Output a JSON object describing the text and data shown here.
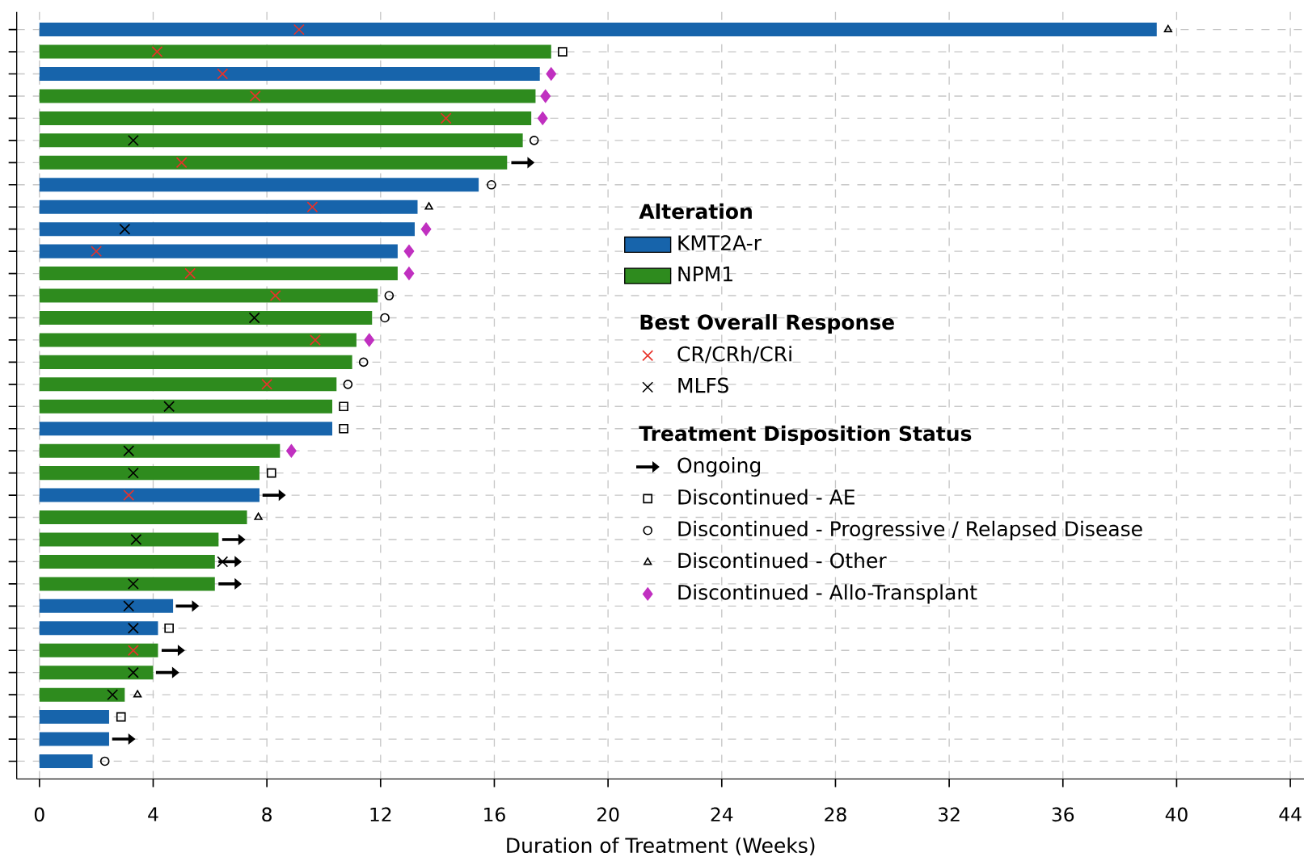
{
  "chart_data": {
    "type": "bar",
    "orientation": "horizontal",
    "xlabel": "Duration of Treatment (Weeks)",
    "legend_title": "Alteration",
    "annotations": [
      "Best Overall Response",
      "Treatment Disposition Status"
    ],
    "categories": [
      null,
      null,
      null,
      null,
      null,
      null,
      null,
      null,
      null,
      null,
      null,
      null,
      null,
      null,
      null,
      null,
      null,
      null,
      null,
      null,
      null,
      null,
      null,
      null,
      null,
      null,
      null,
      null,
      null,
      null,
      null,
      null,
      null,
      null
    ],
    "xlim": [
      -0.8,
      44.5
    ],
    "xticks": [
      0,
      4,
      8,
      12,
      16,
      20,
      24,
      28,
      32,
      36,
      40,
      44
    ],
    "grid": true,
    "legend": "right",
    "tick_labels": "x",
    "series": [
      {
        "name": "KMT2A-r",
        "color": "#1764ab",
        "values": [
          39.3,
          null,
          17.6,
          null,
          null,
          null,
          null,
          15.45,
          13.3,
          13.2,
          12.6,
          null,
          null,
          null,
          null,
          null,
          null,
          null,
          10.3,
          null,
          null,
          7.74,
          null,
          null,
          null,
          null,
          4.7,
          4.17,
          null,
          null,
          null,
          2.45,
          2.45,
          1.87
        ]
      },
      {
        "name": "NPM1",
        "color": "#2e8b1e",
        "values": [
          null,
          18.0,
          null,
          17.45,
          17.3,
          17.0,
          16.45,
          null,
          null,
          null,
          null,
          12.6,
          11.9,
          11.7,
          11.15,
          11.0,
          10.45,
          10.3,
          null,
          8.46,
          7.74,
          null,
          7.3,
          6.3,
          6.17,
          6.17,
          null,
          null,
          4.17,
          4.0,
          3.0,
          null,
          null,
          null
        ]
      },
      {
        "name": "CR/CRh/CRi",
        "type": "scatter",
        "marker": "cross",
        "color": "#e8332a",
        "values": [
          9.13,
          4.14,
          6.44,
          7.59,
          14.3,
          null,
          5.0,
          null,
          9.6,
          null,
          2.0,
          5.3,
          8.3,
          null,
          9.7,
          null,
          8.0,
          null,
          null,
          null,
          null,
          3.14,
          null,
          null,
          null,
          null,
          null,
          null,
          3.3,
          null,
          null,
          null,
          null,
          null
        ]
      },
      {
        "name": "MLFS",
        "type": "scatter",
        "marker": "cross",
        "color": "#000000",
        "values": [
          null,
          null,
          null,
          null,
          null,
          3.3,
          null,
          null,
          null,
          3.0,
          null,
          null,
          null,
          7.56,
          null,
          null,
          null,
          4.56,
          null,
          3.14,
          3.3,
          null,
          null,
          3.4,
          6.44,
          3.3,
          3.14,
          3.3,
          null,
          3.3,
          2.57,
          null,
          null,
          null
        ]
      },
      {
        "name": "Ongoing",
        "type": "scatter",
        "color": "#000000",
        "values": [
          null,
          null,
          null,
          null,
          null,
          null,
          17.0,
          null,
          null,
          null,
          null,
          null,
          null,
          null,
          null,
          null,
          null,
          null,
          null,
          null,
          null,
          8.25,
          null,
          6.83,
          6.7,
          6.7,
          5.2,
          null,
          4.7,
          4.5,
          null,
          null,
          2.96,
          null
        ]
      },
      {
        "name": "Discontinued - AE",
        "type": "scatter",
        "marker": "square",
        "color": "#000000",
        "values": [
          null,
          18.4,
          null,
          null,
          null,
          null,
          null,
          null,
          null,
          null,
          null,
          null,
          null,
          null,
          null,
          null,
          null,
          10.7,
          10.7,
          null,
          8.16,
          null,
          null,
          null,
          null,
          null,
          null,
          4.56,
          null,
          null,
          null,
          2.87,
          null,
          null
        ]
      },
      {
        "name": "Discontinued - Progressive / Relapsed Disease",
        "type": "scatter",
        "marker": "circle",
        "color": "#000000",
        "values": [
          null,
          null,
          null,
          null,
          null,
          17.4,
          null,
          15.9,
          null,
          null,
          null,
          null,
          12.3,
          12.15,
          null,
          11.4,
          10.85,
          null,
          null,
          null,
          null,
          null,
          null,
          null,
          null,
          null,
          null,
          null,
          null,
          null,
          null,
          null,
          null,
          2.3
        ]
      },
      {
        "name": "Discontinued - Other",
        "type": "scatter",
        "marker": "triangle",
        "color": "#000000",
        "values": [
          39.7,
          null,
          null,
          null,
          null,
          null,
          null,
          null,
          13.7,
          null,
          null,
          null,
          null,
          null,
          null,
          null,
          null,
          null,
          null,
          null,
          null,
          null,
          7.7,
          null,
          null,
          null,
          null,
          null,
          null,
          null,
          3.45,
          null,
          null,
          null
        ]
      },
      {
        "name": "Discontinued - Allo-Transplant",
        "type": "scatter",
        "marker": "diamond",
        "color": "#c030c0",
        "values": [
          null,
          null,
          18.0,
          17.8,
          17.7,
          null,
          null,
          null,
          null,
          13.6,
          13.0,
          13.0,
          null,
          null,
          11.6,
          null,
          null,
          null,
          null,
          8.86,
          null,
          null,
          null,
          null,
          null,
          null,
          null,
          null,
          null,
          null,
          null,
          null,
          null,
          null
        ]
      }
    ]
  }
}
